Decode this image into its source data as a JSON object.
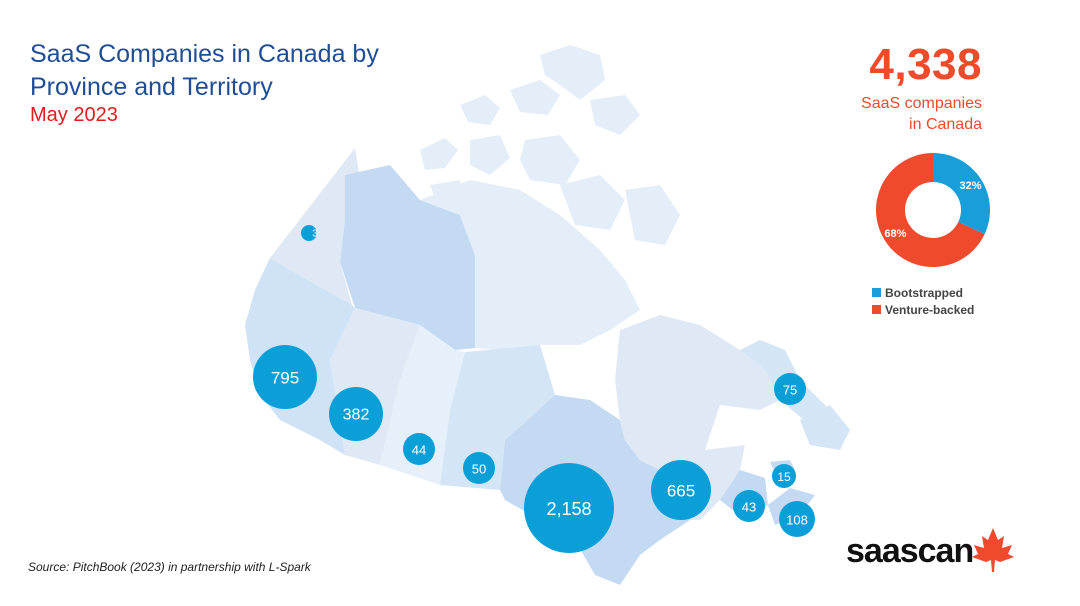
{
  "title": {
    "line1": "SaaS Companies in Canada by",
    "line2": "Province and Territory",
    "date": "May 2023"
  },
  "summary": {
    "total": "4,338",
    "label_line1": "SaaS companies",
    "label_line2": "in Canada"
  },
  "chart_data": {
    "type": "pie",
    "slices": [
      {
        "name": "Bootstrapped",
        "value": 32,
        "label": "32%",
        "color": "#1a9ed9"
      },
      {
        "name": "Venture-backed",
        "value": 68,
        "label": "68%",
        "color": "#ef4a2e"
      }
    ]
  },
  "map_data": {
    "bubble_color": "#0b9fd8",
    "regions": [
      {
        "region": "Yukon",
        "count": 3,
        "label": "3"
      },
      {
        "region": "British Columbia",
        "count": 795,
        "label": "795"
      },
      {
        "region": "Alberta",
        "count": 382,
        "label": "382"
      },
      {
        "region": "Saskatchewan",
        "count": 44,
        "label": "44"
      },
      {
        "region": "Manitoba",
        "count": 50,
        "label": "50"
      },
      {
        "region": "Ontario",
        "count": 2158,
        "label": "2,158"
      },
      {
        "region": "Quebec",
        "count": 665,
        "label": "665"
      },
      {
        "region": "Newfoundland and Labrador",
        "count": 75,
        "label": "75"
      },
      {
        "region": "Prince Edward Island",
        "count": 15,
        "label": "15"
      },
      {
        "region": "New Brunswick",
        "count": 43,
        "label": "43"
      },
      {
        "region": "Nova Scotia",
        "count": 108,
        "label": "108"
      }
    ]
  },
  "legend": {
    "bootstrapped": "Bootstrapped",
    "venture_backed": "Venture-backed"
  },
  "source": "Source: PitchBook (2023) in partnership with L-Spark",
  "logo": {
    "part1": "saas",
    "part2": "can",
    "leaf_color": "#ef4a2e"
  }
}
